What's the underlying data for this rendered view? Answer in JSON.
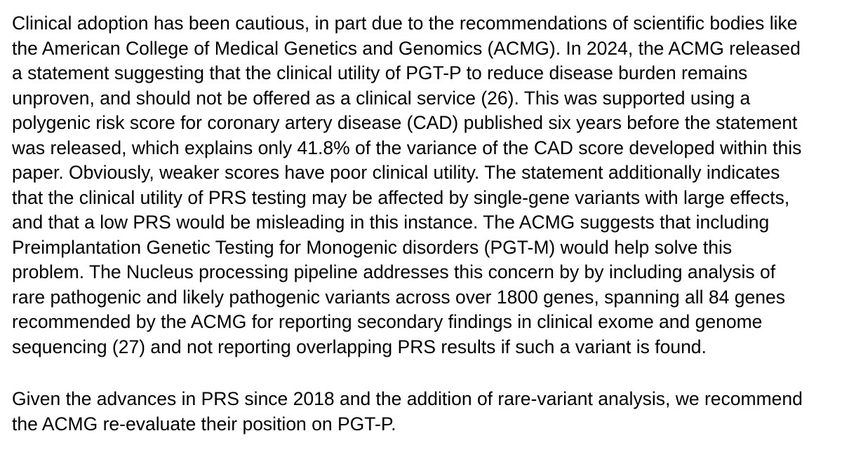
{
  "colors": {
    "background": "#ffffff",
    "text": "#000000"
  },
  "document": {
    "paragraphs": [
      {
        "lines": [
          "Clinical adoption has been cautious, in part due to the recommendations of scientific bodies like",
          "the American College of Medical Genetics and Genomics (ACMG). In 2024, the ACMG released",
          "a statement suggesting that the clinical utility of PGT-P to reduce disease burden remains",
          "unproven, and should not be offered as a clinical service (26). This was supported using a",
          "polygenic risk score for coronary artery disease (CAD) published six years before the statement",
          "was released, which explains only 41.8% of the variance of the CAD score developed within this",
          "paper. Obviously, weaker scores have poor clinical utility. The statement additionally indicates",
          "that the clinical utility of PRS testing may be affected by single-gene variants with large effects,",
          "and that a low PRS would be misleading in this instance. The ACMG suggests that including",
          "Preimplantation Genetic Testing for Monogenic disorders (PGT-M) would help solve this",
          "problem. The Nucleus processing pipeline addresses this concern by by including analysis of",
          "rare pathogenic and likely pathogenic variants across over 1800 genes, spanning all 84 genes",
          "recommended by the ACMG for reporting secondary findings in clinical exome and genome",
          "sequencing (27) and not reporting overlapping PRS results if such a variant is found."
        ]
      },
      {
        "lines": [
          "Given the advances in PRS since 2018 and the addition of rare-variant analysis, we recommend",
          "the ACMG re-evaluate their position on PGT-P."
        ]
      }
    ]
  }
}
